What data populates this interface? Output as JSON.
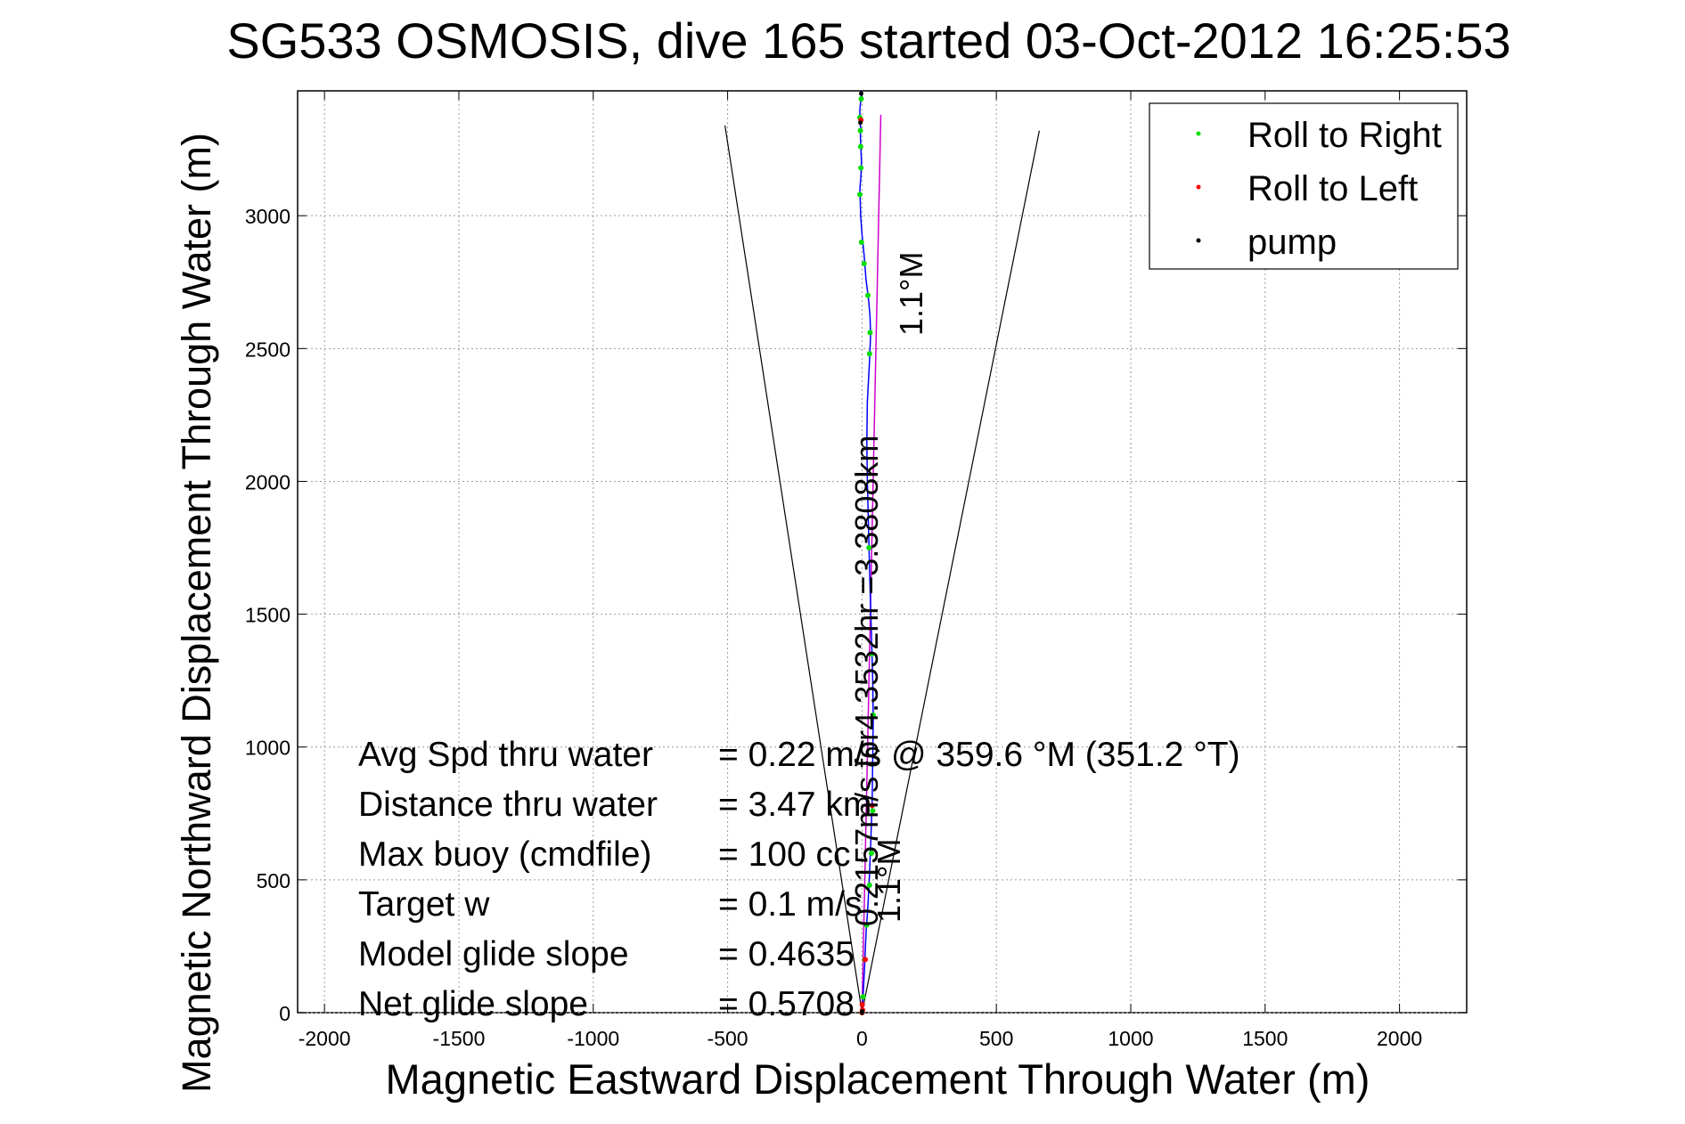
{
  "chart_data": {
    "type": "line",
    "title": "SG533 OSMOSIS, dive 165 started 03-Oct-2012 16:25:53",
    "xlabel": "Magnetic Eastward Displacement Through Water (m)",
    "ylabel": "Magnetic Northward Displacement Through Water (m)",
    "xlim": [
      -2100,
      2250
    ],
    "ylim": [
      0,
      3470
    ],
    "x_ticks": [
      -2000,
      -1500,
      -1000,
      -500,
      0,
      500,
      1000,
      1500,
      2000
    ],
    "x_tick_labels": [
      "-2000",
      "-1500",
      "-1000",
      "-500",
      "0",
      "500",
      "1000",
      "1500",
      "2000"
    ],
    "y_ticks": [
      0,
      500,
      1000,
      1500,
      2000,
      2500,
      3000
    ],
    "y_tick_labels": [
      "0",
      "500",
      "1000",
      "1500",
      "2000",
      "2500",
      "3000"
    ],
    "grid": true,
    "legend_position": "top-right",
    "legend": [
      "Roll to Right",
      "Roll to Left",
      "pump"
    ],
    "colors": {
      "track": "#0000ff",
      "roll_right": "#00dd00",
      "roll_left": "#ff0000",
      "pump": "#000000",
      "heading": "#cc00cc",
      "cone": "#000000",
      "grid": "#9a9a9a"
    },
    "track": {
      "x": [
        0,
        5,
        10,
        15,
        22,
        28,
        33,
        38,
        40,
        42,
        40,
        36,
        30,
        25,
        20,
        18,
        20,
        28,
        32,
        30,
        25,
        15,
        8,
        0,
        -5,
        -8,
        -4,
        -2,
        -4,
        -6,
        -5,
        -8,
        -8,
        -4,
        -2
      ],
      "y": [
        0,
        80,
        180,
        300,
        400,
        520,
        650,
        800,
        950,
        1100,
        1250,
        1400,
        1600,
        1800,
        2000,
        2150,
        2300,
        2450,
        2550,
        2620,
        2680,
        2760,
        2850,
        2930,
        3000,
        3100,
        3150,
        3200,
        3250,
        3300,
        3330,
        3360,
        3400,
        3440,
        3470
      ]
    },
    "roll_right": {
      "x": [
        0,
        4,
        10,
        17,
        28,
        35,
        40,
        42,
        36,
        26,
        28,
        30,
        22,
        8,
        -2,
        -8,
        -4,
        -5,
        -6,
        -8,
        -3
      ],
      "y": [
        0,
        60,
        200,
        330,
        480,
        600,
        760,
        1120,
        1350,
        1750,
        2480,
        2560,
        2700,
        2820,
        2900,
        3080,
        3180,
        3260,
        3320,
        3370,
        3440
      ]
    },
    "roll_left": {
      "x": [
        0,
        1,
        2,
        12,
        38,
        -4
      ],
      "y": [
        0,
        30,
        10,
        200,
        780,
        3360
      ]
    },
    "pump": {
      "x": [
        0,
        1,
        -6,
        -3
      ],
      "y": [
        0,
        5,
        3350,
        3460
      ]
    },
    "heading_line": {
      "x": [
        0,
        70
      ],
      "y": [
        0,
        3380
      ]
    },
    "cone_left": {
      "x": [
        0,
        -510
      ],
      "y": [
        0,
        3340
      ]
    },
    "cone_right": {
      "x": [
        0,
        660
      ],
      "y": [
        0,
        3320
      ]
    },
    "annotations": {
      "heading_top": "1.1°M",
      "heading_bottom": "1.1°M",
      "speed_along": "0.2157m/s for4.3532hr =3.3808km"
    },
    "stats": [
      {
        "label": "Avg Spd thru water",
        "value": "=  0.22 m/s @ 359.6 °M (351.2 °T)"
      },
      {
        "label": "Distance thru water",
        "value": "=  3.47 km"
      },
      {
        "label": "Max buoy (cmdfile)",
        "value": "= 100 cc"
      },
      {
        "label": "Target w",
        "value": "= 0.1 m/s"
      },
      {
        "label": "Model glide slope",
        "value": "= 0.4635"
      },
      {
        "label": "Net glide slope",
        "value": "= 0.5708"
      }
    ]
  }
}
